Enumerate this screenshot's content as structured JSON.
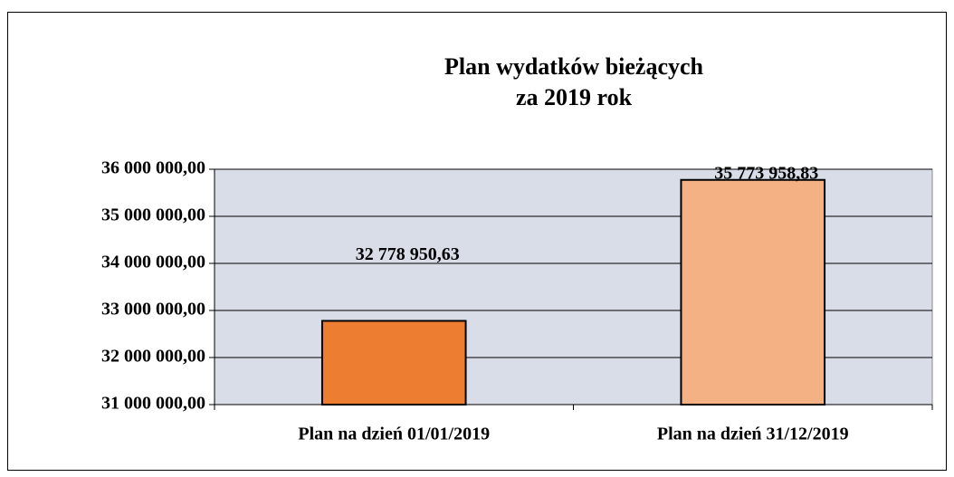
{
  "chart_data": {
    "type": "bar",
    "title": [
      "Plan wydatków bieżących",
      "za 2019 rok"
    ],
    "categories": [
      "Plan na dzień 01/01/2019",
      "Plan na dzień 31/12/2019"
    ],
    "values": [
      32778950.63,
      35773958.83
    ],
    "value_labels": [
      "32 778 950,63",
      "35 773 958,83"
    ],
    "colors": [
      "#ed7d31",
      "#f4b183"
    ],
    "ylim": [
      31000000,
      36000000
    ],
    "yticks": [
      {
        "value": 31000000,
        "label": "31 000 000,00"
      },
      {
        "value": 32000000,
        "label": "32 000 000,00"
      },
      {
        "value": 33000000,
        "label": "33 000 000,00"
      },
      {
        "value": 34000000,
        "label": "34 000 000,00"
      },
      {
        "value": 35000000,
        "label": "35 000 000,00"
      },
      {
        "value": 36000000,
        "label": "36 000 000,00"
      }
    ],
    "grid": true,
    "plot_background": "#d9dde8"
  }
}
